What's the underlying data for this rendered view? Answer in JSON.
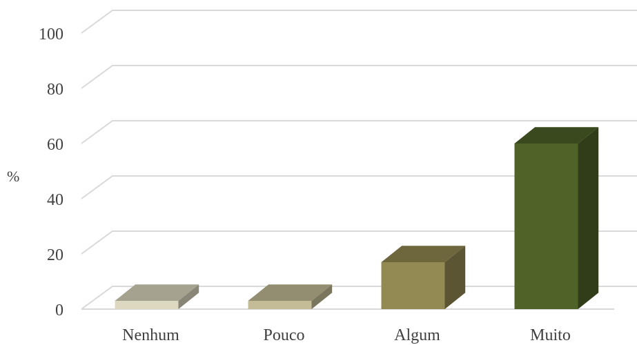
{
  "chart_data": {
    "type": "bar",
    "style": "3d-column",
    "categories": [
      "Nenhum",
      "Pouco",
      "Algum",
      "Muito"
    ],
    "values": [
      3,
      3,
      17,
      60
    ],
    "colors": [
      "#ddd8c0",
      "#c4bc96",
      "#938953",
      "#4f6228"
    ],
    "ylabel": "%",
    "ylim": [
      0,
      100
    ],
    "yticks": [
      "0",
      "20",
      "40",
      "60",
      "80",
      "100"
    ],
    "grid": true,
    "legend": "none"
  }
}
